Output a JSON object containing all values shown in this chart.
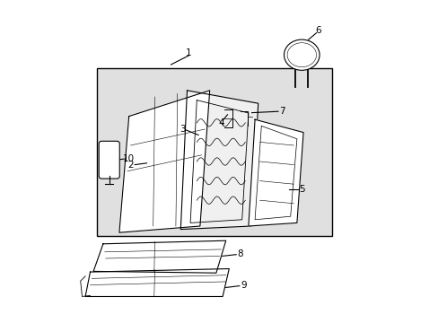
{
  "bg_color": "#ffffff",
  "box_bg": "#e0e0e0",
  "line_color": "#000000",
  "figsize": [
    4.89,
    3.6
  ],
  "dpi": 100
}
